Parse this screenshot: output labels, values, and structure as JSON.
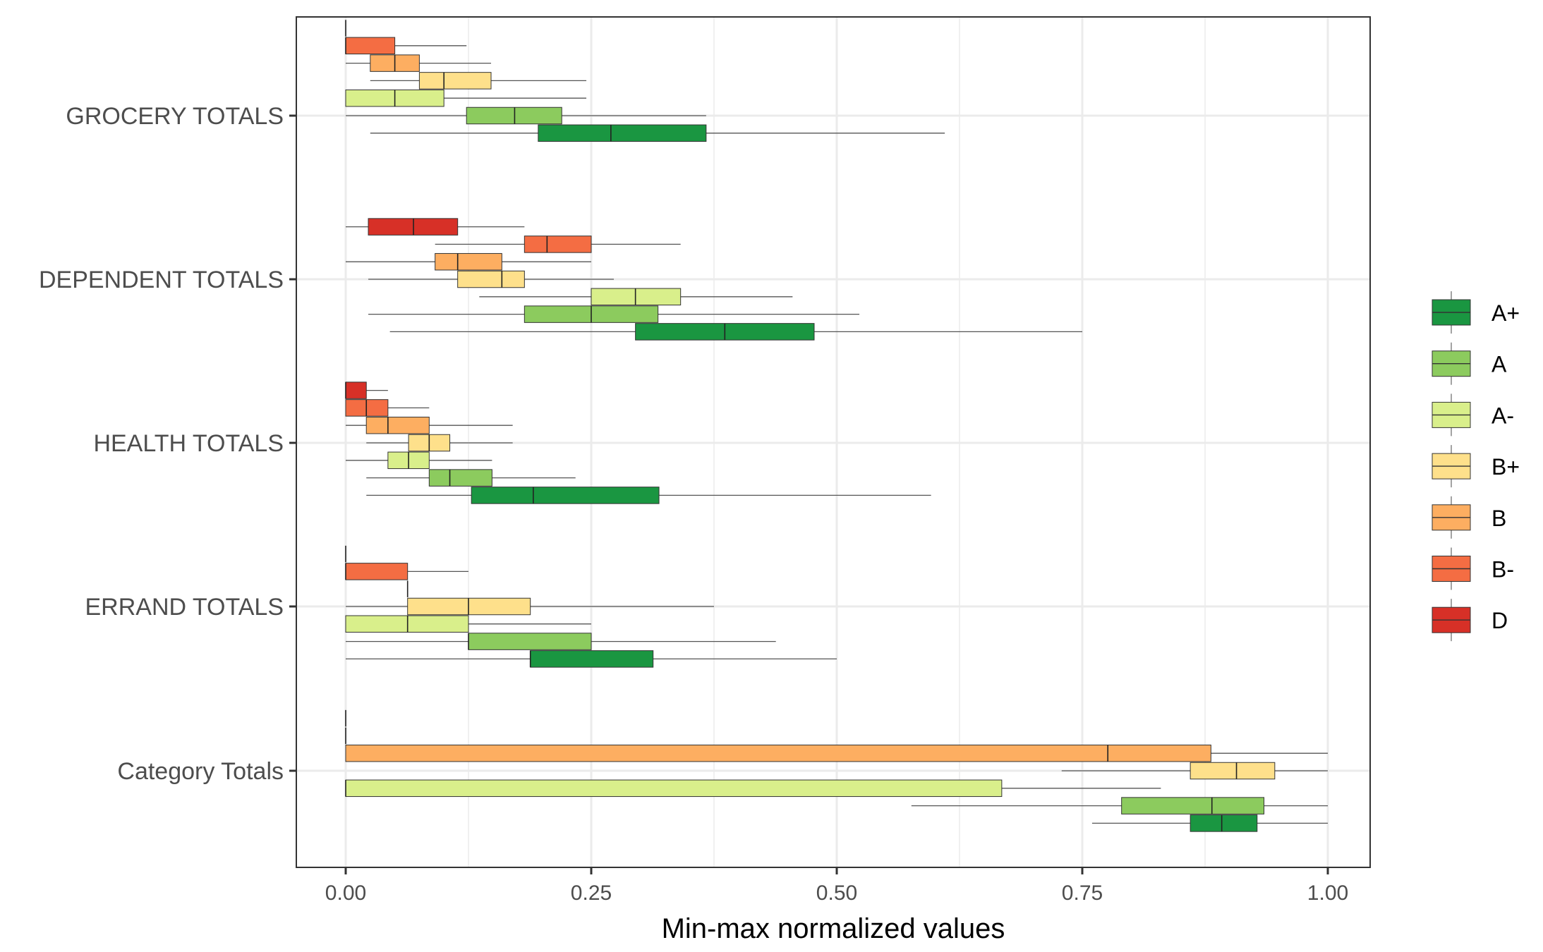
{
  "chart_data": {
    "type": "boxplot",
    "orientation": "horizontal",
    "xlabel": "Min-max normalized values",
    "xlim": [
      -0.1,
      2.1
    ],
    "xticks": [
      0.0,
      0.25,
      0.5,
      0.75,
      1.0
    ],
    "xtick_labels": [
      "0.00",
      "0.25",
      "0.50",
      "0.75",
      "1.00"
    ],
    "grid": true,
    "legend_position": "right",
    "categories": [
      "GROCERY TOTALS",
      "DEPENDENT TOTALS",
      "HEALTH TOTALS",
      "ERRAND TOTALS",
      "Category Totals"
    ],
    "series": [
      {
        "name": "A+",
        "color": "#1a9641"
      },
      {
        "name": "A",
        "color": "#8ccb5e"
      },
      {
        "name": "A-",
        "color": "#d9ef8b"
      },
      {
        "name": "B+",
        "color": "#fee08b"
      },
      {
        "name": "B",
        "color": "#fdae61"
      },
      {
        "name": "B-",
        "color": "#f46d43"
      },
      {
        "name": "D",
        "color": "#d73027"
      }
    ],
    "boxes": [
      {
        "category": "GROCERY TOTALS",
        "group": "B-",
        "slot": 5,
        "whisker_low": 0.0,
        "q1": 0.0,
        "median": 0.0,
        "q3": 0.0,
        "whisker_high": 0.0
      },
      {
        "category": "GROCERY TOTALS",
        "group": "B-",
        "slot": 4,
        "whisker_low": 0.0,
        "q1": 0.0,
        "median": 0.0,
        "q3": 0.05,
        "whisker_high": 0.123
      },
      {
        "category": "GROCERY TOTALS",
        "group": "B",
        "slot": 3,
        "whisker_low": 0.0,
        "q1": 0.025,
        "median": 0.05,
        "q3": 0.075,
        "whisker_high": 0.148
      },
      {
        "category": "GROCERY TOTALS",
        "group": "B+",
        "slot": 2,
        "whisker_low": 0.025,
        "q1": 0.075,
        "median": 0.1,
        "q3": 0.148,
        "whisker_high": 0.245
      },
      {
        "category": "GROCERY TOTALS",
        "group": "A-",
        "slot": 1,
        "whisker_low": 0.0,
        "q1": 0.0,
        "median": 0.05,
        "q3": 0.1,
        "whisker_high": 0.245
      },
      {
        "category": "GROCERY TOTALS",
        "group": "A",
        "slot": 0,
        "whisker_low": 0.0,
        "q1": 0.123,
        "median": 0.172,
        "q3": 0.22,
        "whisker_high": 0.367
      },
      {
        "category": "GROCERY TOTALS",
        "group": "A+",
        "slot": -1,
        "whisker_low": 0.025,
        "q1": 0.196,
        "median": 0.27,
        "q3": 0.367,
        "whisker_high": 0.61
      },
      {
        "category": "DEPENDENT TOTALS",
        "group": "D",
        "slot": 3,
        "whisker_low": 0.0,
        "q1": 0.023,
        "median": 0.069,
        "q3": 0.114,
        "whisker_high": 0.182
      },
      {
        "category": "DEPENDENT TOTALS",
        "group": "B-",
        "slot": 2,
        "whisker_low": 0.091,
        "q1": 0.182,
        "median": 0.205,
        "q3": 0.25,
        "whisker_high": 0.341
      },
      {
        "category": "DEPENDENT TOTALS",
        "group": "B",
        "slot": 1,
        "whisker_low": 0.0,
        "q1": 0.091,
        "median": 0.114,
        "q3": 0.159,
        "whisker_high": 0.25
      },
      {
        "category": "DEPENDENT TOTALS",
        "group": "B+",
        "slot": 0,
        "whisker_low": 0.023,
        "q1": 0.114,
        "median": 0.159,
        "q3": 0.182,
        "whisker_high": 0.273
      },
      {
        "category": "DEPENDENT TOTALS",
        "group": "A-",
        "slot": -1,
        "whisker_low": 0.136,
        "q1": 0.25,
        "median": 0.295,
        "q3": 0.341,
        "whisker_high": 0.455
      },
      {
        "category": "DEPENDENT TOTALS",
        "group": "A",
        "slot": -2,
        "whisker_low": 0.023,
        "q1": 0.182,
        "median": 0.25,
        "q3": 0.318,
        "whisker_high": 0.523
      },
      {
        "category": "DEPENDENT TOTALS",
        "group": "A+",
        "slot": -3,
        "whisker_low": 0.045,
        "q1": 0.295,
        "median": 0.386,
        "q3": 0.477,
        "whisker_high": 0.75
      },
      {
        "category": "HEALTH TOTALS",
        "group": "D",
        "slot": 3,
        "whisker_low": 0.0,
        "q1": 0.0,
        "median": 0.0,
        "q3": 0.021,
        "whisker_high": 0.043
      },
      {
        "category": "HEALTH TOTALS",
        "group": "B-",
        "slot": 2,
        "whisker_low": 0.0,
        "q1": 0.0,
        "median": 0.021,
        "q3": 0.043,
        "whisker_high": 0.085
      },
      {
        "category": "HEALTH TOTALS",
        "group": "B",
        "slot": 1,
        "whisker_low": 0.0,
        "q1": 0.021,
        "median": 0.043,
        "q3": 0.085,
        "whisker_high": 0.17
      },
      {
        "category": "HEALTH TOTALS",
        "group": "B+",
        "slot": 0,
        "whisker_low": 0.021,
        "q1": 0.064,
        "median": 0.085,
        "q3": 0.106,
        "whisker_high": 0.17
      },
      {
        "category": "HEALTH TOTALS",
        "group": "A-",
        "slot": -1,
        "whisker_low": 0.0,
        "q1": 0.043,
        "median": 0.064,
        "q3": 0.085,
        "whisker_high": 0.149
      },
      {
        "category": "HEALTH TOTALS",
        "group": "A",
        "slot": -2,
        "whisker_low": 0.021,
        "q1": 0.085,
        "median": 0.106,
        "q3": 0.149,
        "whisker_high": 0.234
      },
      {
        "category": "HEALTH TOTALS",
        "group": "A+",
        "slot": -3,
        "whisker_low": 0.021,
        "q1": 0.128,
        "median": 0.191,
        "q3": 0.319,
        "whisker_high": 0.596
      },
      {
        "category": "ERRAND TOTALS",
        "group": "B-",
        "slot": 3,
        "whisker_low": 0.0,
        "q1": 0.0,
        "median": 0.0,
        "q3": 0.0,
        "whisker_high": 0.0
      },
      {
        "category": "ERRAND TOTALS",
        "group": "B-",
        "slot": 2,
        "whisker_low": 0.0,
        "q1": 0.0,
        "median": 0.0,
        "q3": 0.063,
        "whisker_high": 0.125
      },
      {
        "category": "ERRAND TOTALS",
        "group": "B",
        "slot": 1,
        "whisker_low": 0.063,
        "q1": 0.063,
        "median": 0.063,
        "q3": 0.063,
        "whisker_high": 0.063
      },
      {
        "category": "ERRAND TOTALS",
        "group": "B+",
        "slot": 0,
        "whisker_low": 0.0,
        "q1": 0.063,
        "median": 0.125,
        "q3": 0.188,
        "whisker_high": 0.375
      },
      {
        "category": "ERRAND TOTALS",
        "group": "A-",
        "slot": -1,
        "whisker_low": 0.0,
        "q1": 0.0,
        "median": 0.063,
        "q3": 0.125,
        "whisker_high": 0.25
      },
      {
        "category": "ERRAND TOTALS",
        "group": "A",
        "slot": -2,
        "whisker_low": 0.0,
        "q1": 0.125,
        "median": 0.125,
        "q3": 0.25,
        "whisker_high": 0.438
      },
      {
        "category": "ERRAND TOTALS",
        "group": "A+",
        "slot": -3,
        "whisker_low": 0.0,
        "q1": 0.188,
        "median": 0.188,
        "q3": 0.313,
        "whisker_high": 0.5
      },
      {
        "category": "Category Totals",
        "group": "B-",
        "slot": 3,
        "whisker_low": 0.0,
        "q1": 0.0,
        "median": 0.0,
        "q3": 0.0,
        "whisker_high": 0.0
      },
      {
        "category": "Category Totals",
        "group": "B-",
        "slot": 2,
        "whisker_low": 0.0,
        "q1": 0.0,
        "median": 0.0,
        "q3": 0.0,
        "whisker_high": 0.0
      },
      {
        "category": "Category Totals",
        "group": "B",
        "slot": 1,
        "whisker_low": 0.0,
        "q1": 0.0,
        "median": 0.776,
        "q3": 0.881,
        "whisker_high": 1.0
      },
      {
        "category": "Category Totals",
        "group": "B+",
        "slot": 0,
        "whisker_low": 0.729,
        "q1": 0.86,
        "median": 0.907,
        "q3": 0.946,
        "whisker_high": 1.0
      },
      {
        "category": "Category Totals",
        "group": "A-",
        "slot": -1,
        "whisker_low": 0.0,
        "q1": 0.0,
        "median": 0.0,
        "q3": 0.668,
        "whisker_high": 0.83
      },
      {
        "category": "Category Totals",
        "group": "A",
        "slot": -2,
        "whisker_low": 0.576,
        "q1": 0.79,
        "median": 0.882,
        "q3": 0.935,
        "whisker_high": 1.0
      },
      {
        "category": "Category Totals",
        "group": "A+",
        "slot": -3,
        "whisker_low": 0.76,
        "q1": 0.86,
        "median": 0.892,
        "q3": 0.928,
        "whisker_high": 1.0
      }
    ]
  }
}
